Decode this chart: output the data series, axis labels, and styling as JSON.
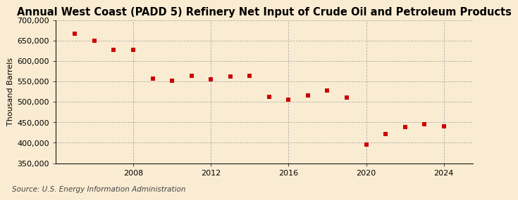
{
  "title": "Annual West Coast (PADD 5) Refinery Net Input of Crude Oil and Petroleum Products",
  "ylabel": "Thousand Barrels",
  "source": "Source: U.S. Energy Information Administration",
  "background_color": "#faecd2",
  "plot_bg_color": "#faecd2",
  "marker_color": "#cc0000",
  "marker": "s",
  "marker_size": 4,
  "years": [
    2005,
    2006,
    2007,
    2008,
    2009,
    2010,
    2011,
    2012,
    2013,
    2014,
    2015,
    2016,
    2017,
    2018,
    2019,
    2020,
    2021,
    2022,
    2023,
    2024
  ],
  "values": [
    667000,
    650000,
    628000,
    628000,
    557000,
    552000,
    563000,
    556000,
    562000,
    563000,
    513000,
    505000,
    515000,
    528000,
    511000,
    396000,
    421000,
    438000,
    445000,
    440000
  ],
  "ylim": [
    350000,
    700000
  ],
  "yticks": [
    350000,
    400000,
    450000,
    500000,
    550000,
    600000,
    650000,
    700000
  ],
  "xlim": [
    2004.0,
    2025.5
  ],
  "xticks": [
    2008,
    2012,
    2016,
    2020,
    2024
  ],
  "grid_color": "#aaaaaa",
  "grid_style": "--",
  "title_fontsize": 10.5,
  "axis_fontsize": 8,
  "tick_fontsize": 8,
  "source_fontsize": 7.5
}
